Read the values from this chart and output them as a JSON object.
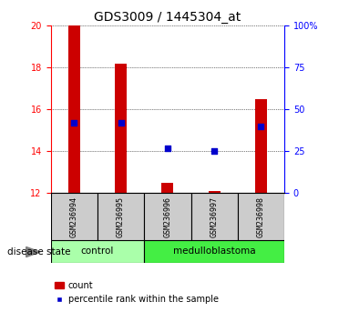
{
  "title": "GDS3009 / 1445304_at",
  "samples": [
    "GSM236994",
    "GSM236995",
    "GSM236996",
    "GSM236997",
    "GSM236998"
  ],
  "bar_tops": [
    20.0,
    18.2,
    12.5,
    12.1,
    16.5
  ],
  "bar_bottom": 12.0,
  "percentile_values": [
    42,
    42,
    27,
    25,
    40
  ],
  "ylim_left": [
    12,
    20
  ],
  "ylim_right": [
    0,
    100
  ],
  "yticks_left": [
    12,
    14,
    16,
    18,
    20
  ],
  "yticks_right": [
    0,
    25,
    50,
    75,
    100
  ],
  "bar_color": "#cc0000",
  "dot_color": "#0000cc",
  "control_count": 2,
  "medulloblastoma_count": 3,
  "control_label": "control",
  "medulloblastoma_label": "medulloblastoma",
  "disease_state_label": "disease state",
  "legend_count": "count",
  "legend_percentile": "percentile rank within the sample",
  "control_bg": "#aaffaa",
  "medulloblastoma_bg": "#44ee44",
  "sample_bg": "#cccccc",
  "title_fontsize": 10,
  "tick_fontsize": 7,
  "bar_width": 0.25
}
